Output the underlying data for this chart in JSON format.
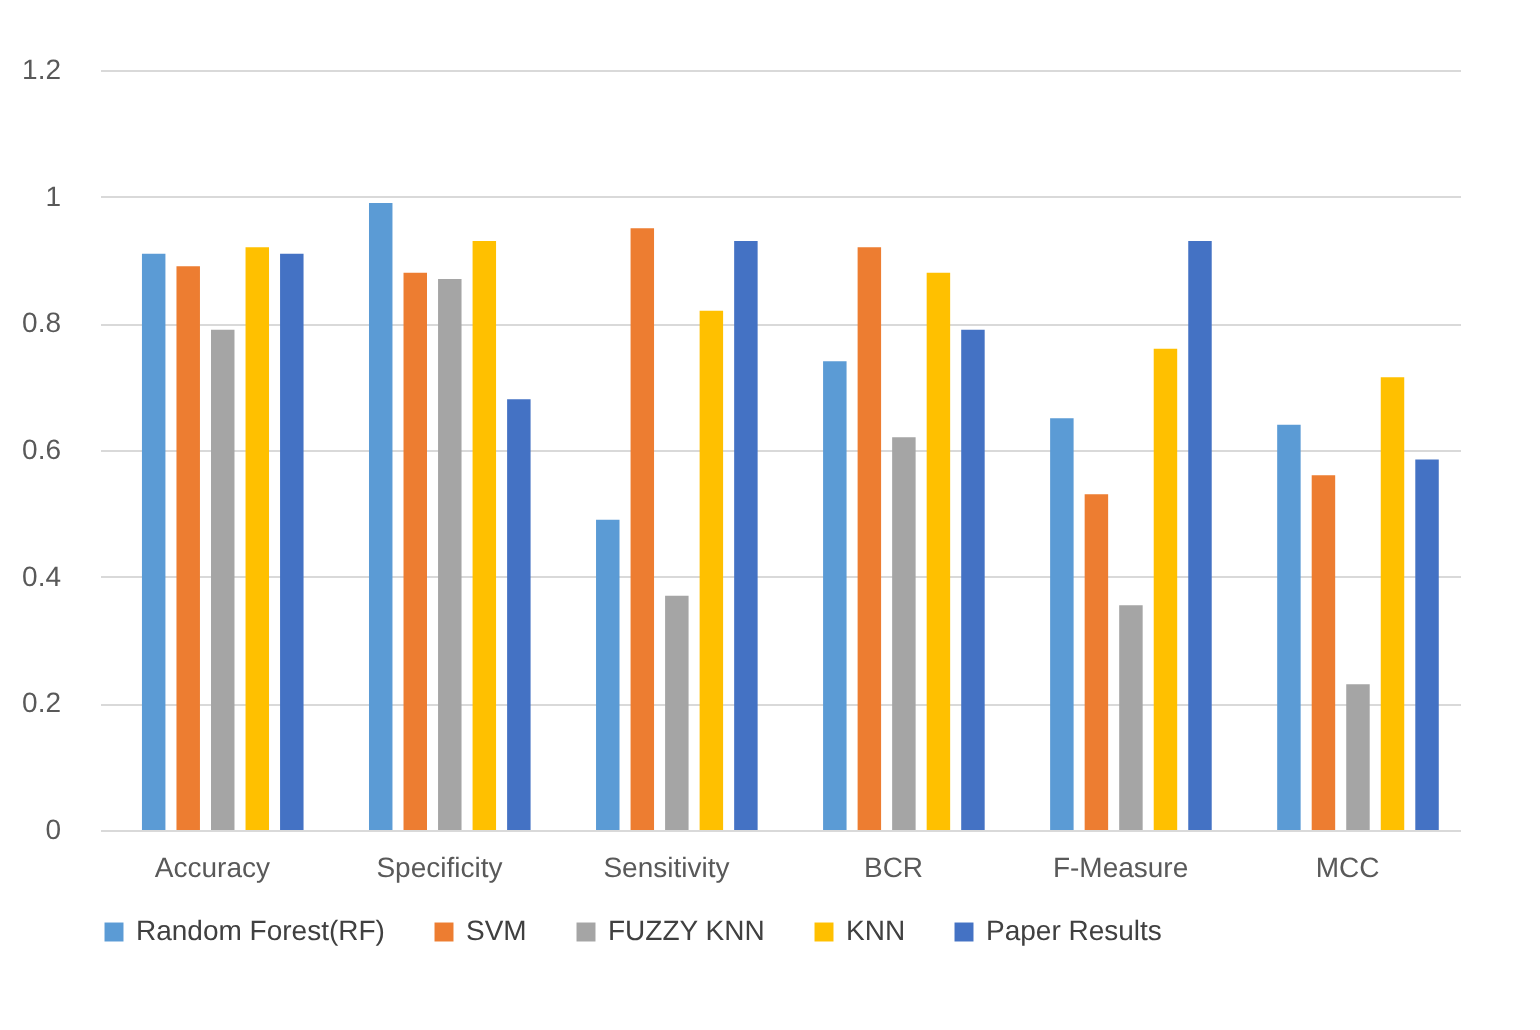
{
  "chart_data": {
    "type": "bar",
    "categories": [
      "Accuracy",
      "Specificity",
      "Sensitivity",
      "BCR",
      "F-Measure",
      "MCC"
    ],
    "series": [
      {
        "name": "Random Forest(RF)",
        "color": "#5b9bd5",
        "values": [
          0.91,
          0.99,
          0.49,
          0.74,
          0.65,
          0.64
        ]
      },
      {
        "name": "SVM",
        "color": "#ed7d31",
        "values": [
          0.89,
          0.88,
          0.95,
          0.92,
          0.53,
          0.56
        ]
      },
      {
        "name": "FUZZY KNN",
        "color": "#a5a5a5",
        "values": [
          0.79,
          0.87,
          0.37,
          0.62,
          0.355,
          0.23
        ]
      },
      {
        "name": "KNN",
        "color": "#ffc000",
        "values": [
          0.92,
          0.93,
          0.82,
          0.88,
          0.76,
          0.715
        ]
      },
      {
        "name": "Paper Results",
        "color": "#4472c4",
        "values": [
          0.91,
          0.68,
          0.93,
          0.79,
          0.93,
          0.585
        ]
      }
    ],
    "ylim": [
      0,
      1.2
    ],
    "yticks": [
      0,
      0.2,
      0.4,
      0.6,
      0.8,
      1,
      1.2
    ],
    "grid": "y",
    "legend": "bottom"
  }
}
